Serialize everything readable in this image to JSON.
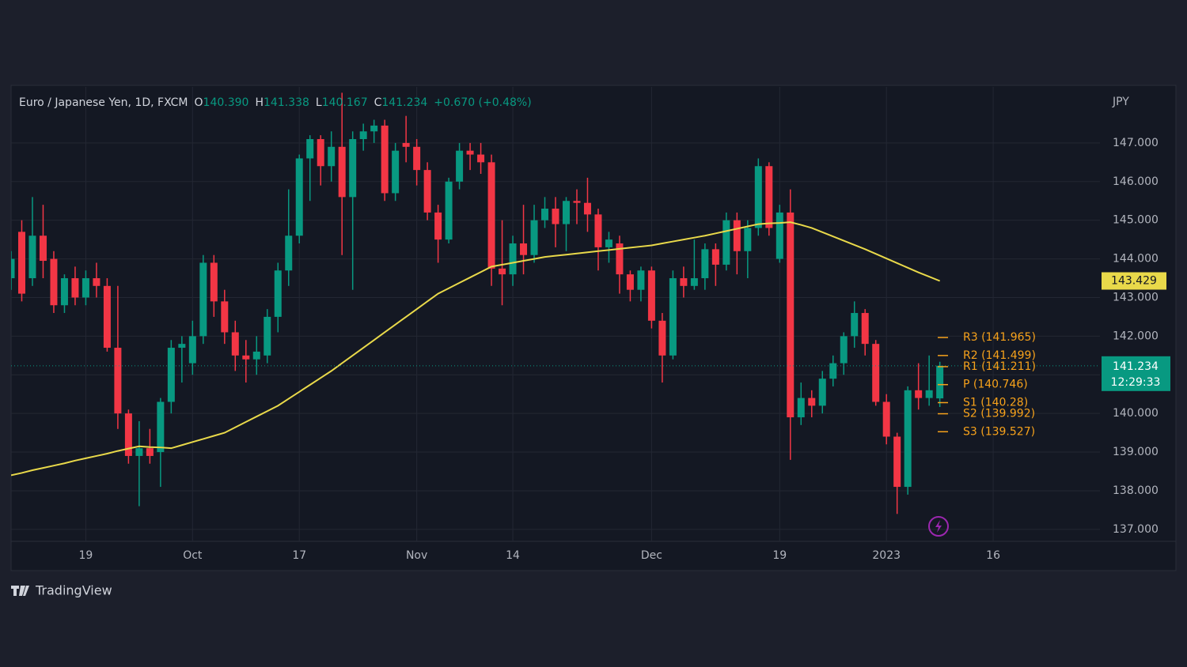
{
  "header": {
    "symbol": "Euro / Japanese Yen, 1D, FXCM",
    "o": "O",
    "open": "140.390",
    "h": "H",
    "high": "141.338",
    "l": "L",
    "low": "140.167",
    "c": "C",
    "close": "141.234",
    "change": "+0.670 (+0.48%)"
  },
  "brand": "TradingView",
  "chart_data": {
    "type": "candlestick",
    "y_label": "JPY",
    "grid": true,
    "up_color": "#089981",
    "down_color": "#f23645",
    "ylim": [
      136.69,
      148.45
    ],
    "yticks": [
      {
        "value": 137,
        "label": "137.000"
      },
      {
        "value": 138,
        "label": "138.000"
      },
      {
        "value": 139,
        "label": "139.000"
      },
      {
        "value": 140,
        "label": "140.000"
      },
      {
        "value": 141,
        "label": "141.000"
      },
      {
        "value": 142,
        "label": "142.000"
      },
      {
        "value": 143,
        "label": "143.000"
      },
      {
        "value": 144,
        "label": "144.000"
      },
      {
        "value": 145,
        "label": "145.000"
      },
      {
        "value": 146,
        "label": "146.000"
      },
      {
        "value": 147,
        "label": "147.000"
      }
    ],
    "xlim": [
      0,
      102
    ],
    "xticks": [
      {
        "value": 7,
        "label": "19"
      },
      {
        "value": 17,
        "label": "Oct"
      },
      {
        "value": 27,
        "label": "17"
      },
      {
        "value": 38,
        "label": "Nov"
      },
      {
        "value": 47,
        "label": "14"
      },
      {
        "value": 60,
        "label": "Dec"
      },
      {
        "value": 72,
        "label": "19"
      },
      {
        "value": 82,
        "label": "2023"
      },
      {
        "value": 92,
        "label": "16"
      }
    ],
    "open": [
      143.5,
      144.7,
      143.5,
      144.6,
      144.0,
      142.8,
      143.5,
      143.0,
      143.5,
      143.3,
      141.7,
      140.0,
      138.9,
      139.1,
      139.0,
      140.3,
      141.7,
      141.3,
      142.0,
      143.9,
      142.9,
      142.1,
      141.5,
      141.4,
      141.5,
      142.5,
      143.7,
      144.6,
      146.6,
      147.1,
      146.4,
      146.9,
      145.6,
      147.1,
      147.3,
      147.45,
      145.7,
      147.0,
      146.9,
      146.3,
      145.2,
      144.5,
      146.0,
      146.8,
      146.7,
      146.5,
      143.75,
      143.6,
      144.4,
      144.1,
      145.0,
      145.3,
      144.9,
      145.5,
      145.45,
      145.15,
      144.3,
      144.4,
      143.6,
      143.2,
      143.7,
      142.4,
      141.5,
      143.5,
      143.3,
      143.5,
      144.25,
      143.85,
      145.0,
      144.2,
      144.8,
      146.4,
      144.0,
      145.2,
      139.9,
      140.4,
      140.2,
      140.9,
      141.3,
      142.0,
      142.6,
      141.8,
      140.3,
      139.4,
      138.1,
      140.6,
      140.4,
      140.39
    ],
    "high": [
      144.2,
      145.0,
      145.6,
      145.4,
      144.2,
      143.6,
      143.8,
      143.7,
      143.9,
      143.5,
      143.3,
      140.1,
      139.8,
      139.6,
      140.4,
      141.9,
      142.0,
      142.4,
      144.1,
      144.1,
      143.2,
      142.4,
      141.9,
      142.0,
      142.7,
      143.9,
      145.8,
      146.7,
      147.2,
      147.2,
      147.3,
      148.3,
      147.3,
      147.5,
      147.6,
      147.6,
      147.0,
      147.7,
      147.1,
      146.5,
      145.4,
      146.1,
      147.0,
      147.0,
      147.0,
      146.7,
      145.0,
      144.6,
      145.4,
      145.4,
      145.6,
      145.6,
      145.6,
      145.8,
      146.1,
      145.3,
      144.7,
      144.6,
      143.7,
      143.8,
      143.8,
      142.6,
      143.7,
      143.8,
      144.5,
      144.4,
      144.4,
      145.2,
      145.2,
      145.0,
      146.6,
      146.5,
      145.4,
      145.8,
      140.8,
      140.6,
      141.1,
      141.5,
      142.1,
      142.9,
      142.7,
      141.9,
      140.5,
      139.5,
      140.7,
      141.3,
      141.5,
      141.338
    ],
    "low": [
      143.2,
      142.9,
      143.3,
      143.5,
      142.6,
      142.6,
      142.8,
      142.8,
      143.0,
      141.6,
      139.6,
      138.7,
      137.6,
      138.7,
      138.1,
      140.0,
      140.8,
      141.0,
      141.8,
      142.5,
      141.8,
      141.1,
      140.8,
      141.0,
      141.3,
      142.1,
      143.3,
      144.4,
      145.5,
      145.9,
      146.0,
      144.1,
      143.2,
      146.8,
      147.0,
      145.5,
      145.5,
      146.5,
      145.9,
      145.0,
      143.9,
      144.4,
      145.8,
      146.3,
      146.2,
      143.3,
      142.8,
      143.3,
      143.6,
      143.9,
      144.8,
      144.3,
      144.2,
      144.9,
      144.7,
      143.7,
      143.9,
      143.1,
      142.9,
      142.9,
      142.2,
      140.8,
      141.4,
      143.0,
      143.2,
      143.2,
      143.3,
      143.7,
      143.6,
      143.5,
      144.6,
      144.6,
      143.9,
      138.8,
      139.7,
      139.9,
      140.0,
      140.7,
      141.0,
      141.7,
      141.5,
      140.2,
      139.2,
      137.4,
      137.9,
      140.1,
      140.2,
      140.167
    ],
    "close": [
      144.0,
      143.1,
      144.6,
      143.95,
      142.8,
      143.5,
      143.0,
      143.5,
      143.3,
      141.7,
      140.0,
      138.9,
      139.1,
      138.9,
      140.3,
      141.7,
      141.8,
      142.0,
      143.9,
      142.9,
      142.1,
      141.5,
      141.4,
      141.6,
      142.5,
      143.7,
      144.6,
      146.6,
      147.1,
      146.4,
      146.9,
      145.6,
      147.1,
      147.3,
      147.45,
      145.7,
      146.8,
      146.9,
      146.3,
      145.2,
      144.5,
      146.0,
      146.8,
      146.7,
      146.5,
      143.75,
      143.6,
      144.4,
      144.1,
      145.0,
      145.3,
      144.9,
      145.5,
      145.45,
      145.15,
      144.3,
      144.5,
      143.6,
      143.2,
      143.7,
      142.4,
      141.5,
      143.5,
      143.3,
      143.5,
      144.25,
      143.85,
      145.0,
      144.2,
      144.8,
      146.4,
      144.8,
      145.2,
      139.9,
      140.4,
      140.2,
      140.9,
      141.3,
      142.0,
      142.6,
      141.8,
      140.3,
      139.4,
      138.1,
      140.6,
      140.4,
      140.6,
      141.234
    ],
    "ma": {
      "color": "#e9d94a",
      "values": [
        138.4,
        138.46,
        138.53,
        138.59,
        138.65,
        138.71,
        138.78,
        138.84,
        138.9,
        138.96,
        139.03,
        139.09,
        139.15,
        139.13,
        139.12,
        139.1,
        139.18,
        139.26,
        139.34,
        139.42,
        139.5,
        139.64,
        139.78,
        139.92,
        140.06,
        140.2,
        140.38,
        140.56,
        140.74,
        140.92,
        141.1,
        141.3,
        141.5,
        141.7,
        141.9,
        142.1,
        142.3,
        142.5,
        142.7,
        142.9,
        143.1,
        143.24,
        143.38,
        143.52,
        143.66,
        143.8,
        143.85,
        143.9,
        143.95,
        144.0,
        144.05,
        144.08,
        144.11,
        144.14,
        144.17,
        144.2,
        144.23,
        144.26,
        144.29,
        144.32,
        144.35,
        144.4,
        144.45,
        144.5,
        144.55,
        144.6,
        144.66,
        144.72,
        144.78,
        144.84,
        144.9,
        144.92,
        144.93,
        144.95,
        144.88,
        144.8,
        144.69,
        144.58,
        144.47,
        144.36,
        144.25,
        144.13,
        144.01,
        143.89,
        143.77,
        143.65,
        143.54,
        143.429
      ]
    },
    "countdown": "12:29:33",
    "pivot_color": "#f7a21b",
    "pivots": [
      {
        "label": "R3 (141.965)",
        "value": 141.965
      },
      {
        "label": "R2 (141.499)",
        "value": 141.499
      },
      {
        "label": "R1 (141.211)",
        "value": 141.211
      },
      {
        "label": "P (140.746)",
        "value": 140.746
      },
      {
        "label": "S1 (140.28)",
        "value": 140.28
      },
      {
        "label": "S2 (139.992)",
        "value": 139.992
      },
      {
        "label": "S3 (139.527)",
        "value": 139.527
      }
    ]
  }
}
